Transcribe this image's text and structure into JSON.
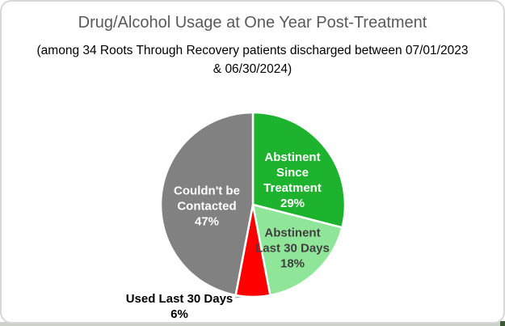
{
  "chart_data": {
    "type": "pie",
    "title": "Drug/Alcohol Usage at One Year Post-Treatment",
    "title_color": "#595959",
    "subtitle": "(among 34 Roots Through Recovery patients discharged between 07/01/2023 & 06/30/2024)",
    "subtitle_lines": [
      "(among 34 Roots Through Recovery patients discharged between 07/01/2023",
      "& 06/30/2024)"
    ],
    "start_angle_deg": 0,
    "direction": "clockwise",
    "slice_gap_color": "#ffffff",
    "slices": [
      {
        "label": "Abstinent Since Treatment",
        "value_pct": 29,
        "color": "#1eb32e",
        "label_color": "#ffffff",
        "label_position": "inside",
        "label_lines": [
          "Abstinent",
          "Since",
          "Treatment",
          "29%"
        ]
      },
      {
        "label": "Abstinent Last 30 Days",
        "value_pct": 18,
        "color": "#90e698",
        "label_color": "#404040",
        "label_position": "inside",
        "label_lines": [
          "Abstinent",
          "Last 30 Days",
          "18%"
        ]
      },
      {
        "label": "Used Last 30 Days",
        "value_pct": 6,
        "color": "#fe0000",
        "label_color": "#000000",
        "label_position": "outside",
        "label_lines": [
          "Used Last 30 Days",
          "6%"
        ]
      },
      {
        "label": "Couldn't be Contacted",
        "value_pct": 47,
        "color": "#818181",
        "label_color": "#ffffff",
        "label_position": "inside",
        "label_lines": [
          "Couldn't be",
          "Contacted",
          "47%"
        ]
      }
    ]
  }
}
